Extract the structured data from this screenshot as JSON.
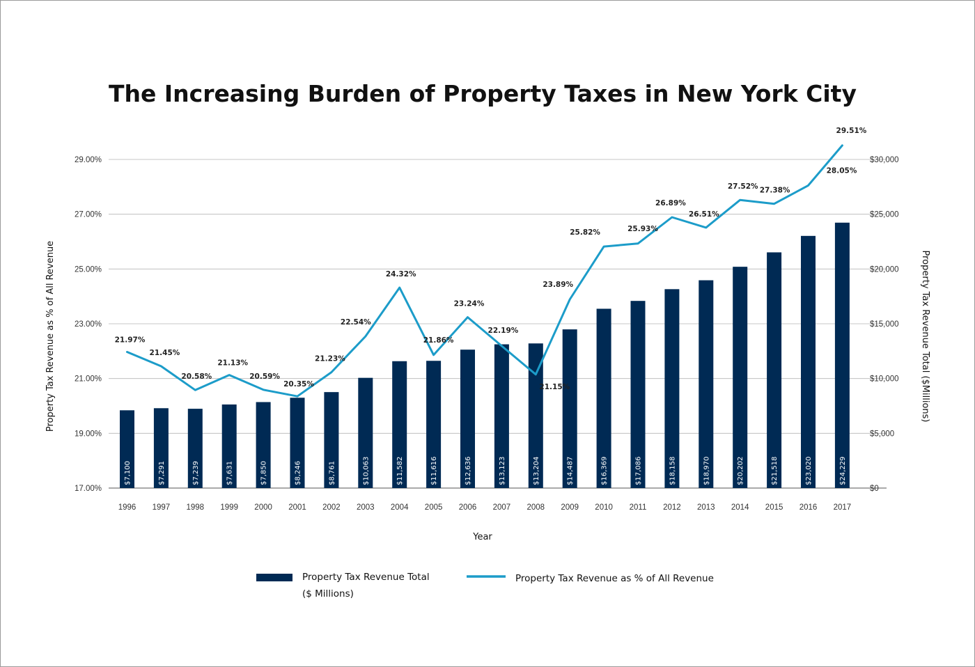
{
  "chart_data": {
    "type": "bar",
    "title": "The Increasing Burden of Property Taxes in New York City",
    "xlabel": "Year",
    "ylabel_left": "Property Tax Revenue as % of All Revenue",
    "ylabel_right": "Property Tax Revenue Total ($Millions)",
    "categories": [
      "1996",
      "1997",
      "1998",
      "1999",
      "2000",
      "2001",
      "2002",
      "2003",
      "2004",
      "2005",
      "2006",
      "2007",
      "2008",
      "2009",
      "2010",
      "2011",
      "2012",
      "2013",
      "2014",
      "2015",
      "2016",
      "2017"
    ],
    "series": [
      {
        "name": "Property Tax Revenue Total ($ Millions)",
        "type": "bar",
        "axis": "right",
        "color": "#002a54",
        "values": [
          7100,
          7291,
          7239,
          7631,
          7850,
          8246,
          8761,
          10063,
          11582,
          11616,
          12636,
          13123,
          13204,
          14487,
          16369,
          17086,
          18158,
          18970,
          20202,
          21518,
          23020,
          24229
        ],
        "labels": [
          "$7,100",
          "$7,291",
          "$7,239",
          "$7,631",
          "$7,850",
          "$8,246",
          "$8,761",
          "$10,063",
          "$11,582",
          "$11,616",
          "$12,636",
          "$13,123",
          "$13,204",
          "$14,487",
          "$16,369",
          "$17,086",
          "$18,158",
          "$18,970",
          "$20,202",
          "$21,518",
          "$23,020",
          "$24,229"
        ]
      },
      {
        "name": "Property Tax Revenue as % of All Revenue",
        "type": "line",
        "axis": "left",
        "color": "#1c9cc9",
        "values": [
          21.97,
          21.45,
          20.58,
          21.13,
          20.59,
          20.35,
          21.23,
          22.54,
          24.32,
          21.86,
          23.24,
          22.19,
          21.15,
          23.89,
          25.82,
          25.93,
          26.89,
          26.51,
          27.52,
          27.38,
          28.05,
          29.51
        ],
        "labels": [
          "21.97%",
          "21.45%",
          "20.58%",
          "21.13%",
          "20.59%",
          "20.35%",
          "21.23%",
          "22.54%",
          "24.32%",
          "21.86%",
          "23.24%",
          "22.19%",
          "21.15%",
          "23.89%",
          "25.82%",
          "25.93%",
          "26.89%",
          "26.51%",
          "27.52%",
          "27.38%",
          "28.05%",
          "29.51%"
        ]
      }
    ],
    "y_left": {
      "min": 17,
      "max": 29,
      "ticks": [
        17,
        19,
        21,
        23,
        25,
        27,
        29
      ],
      "tick_labels": [
        "17.00%",
        "19.00%",
        "21.00%",
        "23.00%",
        "25.00%",
        "27.00%",
        "29.00%"
      ]
    },
    "y_right": {
      "min": 0,
      "max": 30000,
      "ticks": [
        0,
        5000,
        10000,
        15000,
        20000,
        25000,
        30000
      ],
      "tick_labels": [
        "$0",
        "$5,000",
        "$10,000",
        "$15,000",
        "$20,000",
        "$25,000",
        "$30,000"
      ]
    },
    "grid": true,
    "legend": {
      "position": "bottom",
      "bar_label_line1": "Property Tax Revenue Total",
      "bar_label_line2": "($ Millions)",
      "line_label": "Property Tax Revenue as % of All Revenue"
    }
  }
}
